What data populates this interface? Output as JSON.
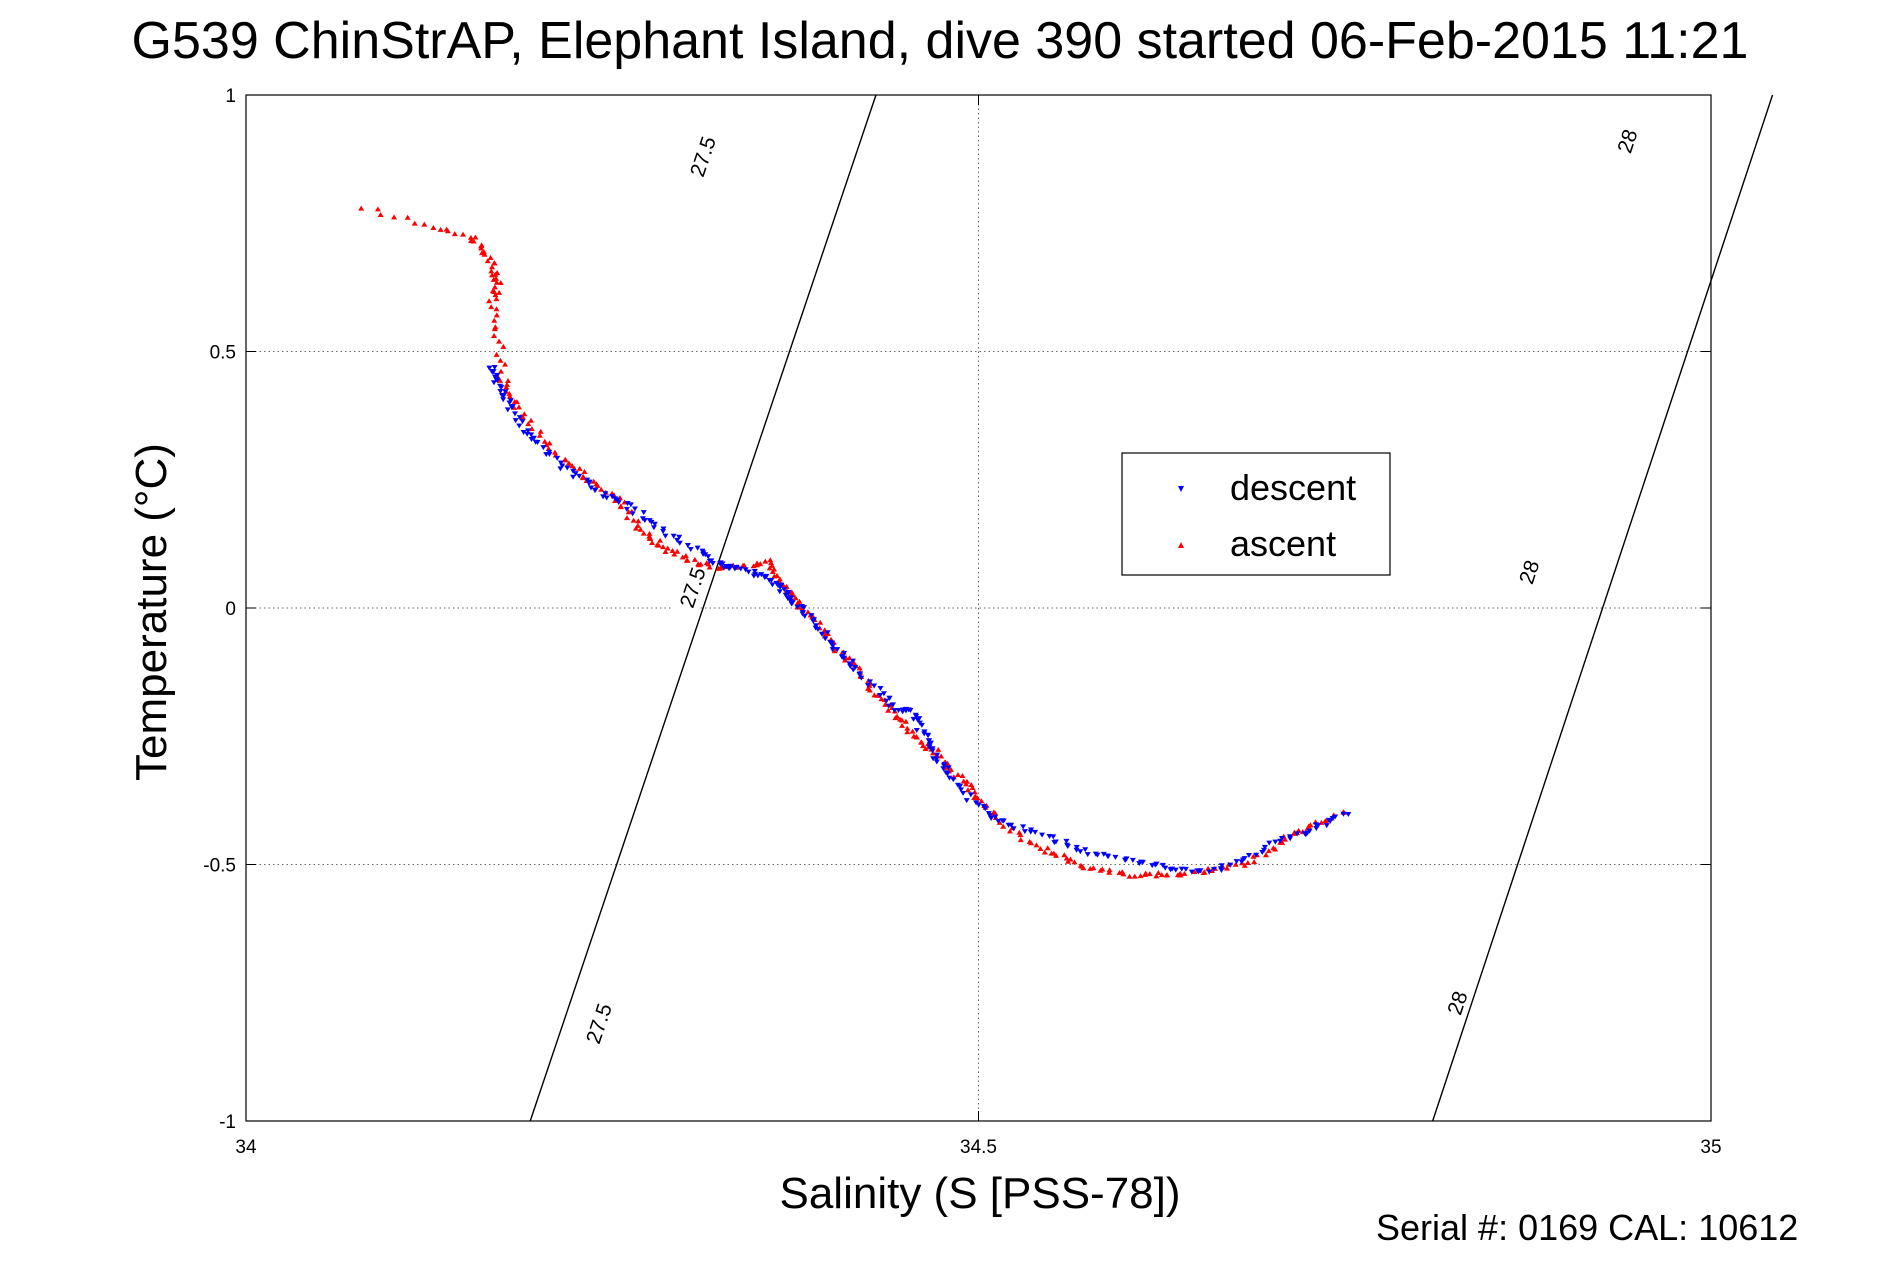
{
  "chart_data": {
    "type": "scatter",
    "title": "G539 ChinStrAP, Elephant Island, dive 390 started 06-Feb-2015 11:21",
    "xlabel": "Salinity (S [PSS-78])",
    "ylabel": "Temperature (°C)",
    "footer": "Serial #: 0169 CAL: 10612",
    "xlim": [
      34,
      35
    ],
    "ylim": [
      -1,
      1
    ],
    "x_ticks": [
      34,
      34.5,
      35
    ],
    "x_tick_labels": [
      "34",
      "34.5",
      "35"
    ],
    "y_ticks": [
      -1,
      -0.5,
      0,
      0.5,
      1
    ],
    "y_tick_labels": [
      "-1",
      "-0.5",
      "0",
      "0.5",
      "1"
    ],
    "grid": true,
    "legend_position": "upper-right",
    "colors": {
      "descent": "#0000ff",
      "ascent": "#ff0000",
      "isopycnal": "#000000"
    },
    "isopycnals": [
      {
        "label": "27.5",
        "x": [
          34.194,
          34.253,
          34.312,
          34.371,
          34.43
        ],
        "y": [
          -1,
          -0.5,
          0,
          0.5,
          1
        ],
        "label_positions": [
          {
            "x": 34.241,
            "y": -0.81
          },
          {
            "x": 34.305,
            "y": 0.04
          },
          {
            "x": 34.312,
            "y": 0.88
          }
        ]
      },
      {
        "label": "28",
        "x": [
          34.81,
          34.868,
          34.926,
          34.984,
          35.042
        ],
        "y": [
          -1,
          -0.5,
          0,
          0.5,
          1
        ],
        "label_positions": [
          {
            "x": 34.827,
            "y": -0.77
          },
          {
            "x": 34.876,
            "y": 0.07
          },
          {
            "x": 34.943,
            "y": 0.91
          }
        ]
      }
    ],
    "series": [
      {
        "name": "descent",
        "marker": "triangle-down",
        "path": [
          [
            34.168,
            0.47
          ],
          [
            34.17,
            0.45
          ],
          [
            34.175,
            0.42
          ],
          [
            34.18,
            0.39
          ],
          [
            34.19,
            0.35
          ],
          [
            34.2,
            0.32
          ],
          [
            34.215,
            0.28
          ],
          [
            34.23,
            0.25
          ],
          [
            34.245,
            0.22
          ],
          [
            34.26,
            0.2
          ],
          [
            34.275,
            0.17
          ],
          [
            34.29,
            0.14
          ],
          [
            34.31,
            0.11
          ],
          [
            34.32,
            0.09
          ],
          [
            34.33,
            0.08
          ],
          [
            34.345,
            0.07
          ],
          [
            34.355,
            0.06
          ],
          [
            34.365,
            0.04
          ],
          [
            34.37,
            0.02
          ],
          [
            34.38,
            0.0
          ],
          [
            34.39,
            -0.03
          ],
          [
            34.4,
            -0.07
          ],
          [
            34.41,
            -0.1
          ],
          [
            34.42,
            -0.13
          ],
          [
            34.435,
            -0.17
          ],
          [
            34.445,
            -0.2
          ],
          [
            34.455,
            -0.2
          ],
          [
            34.46,
            -0.23
          ],
          [
            34.465,
            -0.26
          ],
          [
            34.47,
            -0.29
          ],
          [
            34.48,
            -0.32
          ],
          [
            34.49,
            -0.36
          ],
          [
            34.505,
            -0.4
          ],
          [
            34.52,
            -0.42
          ],
          [
            34.54,
            -0.44
          ],
          [
            34.56,
            -0.46
          ],
          [
            34.58,
            -0.48
          ],
          [
            34.6,
            -0.49
          ],
          [
            34.62,
            -0.5
          ],
          [
            34.64,
            -0.51
          ],
          [
            34.66,
            -0.51
          ],
          [
            34.68,
            -0.49
          ],
          [
            34.7,
            -0.46
          ],
          [
            34.72,
            -0.44
          ],
          [
            34.735,
            -0.42
          ],
          [
            34.75,
            -0.4
          ]
        ]
      },
      {
        "name": "ascent",
        "marker": "triangle-up",
        "path": [
          [
            34.08,
            0.78
          ],
          [
            34.13,
            0.74
          ],
          [
            34.155,
            0.72
          ],
          [
            34.165,
            0.69
          ],
          [
            34.17,
            0.66
          ],
          [
            34.172,
            0.63
          ],
          [
            34.168,
            0.6
          ],
          [
            34.172,
            0.53
          ],
          [
            34.175,
            0.45
          ],
          [
            34.18,
            0.41
          ],
          [
            34.19,
            0.37
          ],
          [
            34.205,
            0.32
          ],
          [
            34.22,
            0.28
          ],
          [
            34.235,
            0.25
          ],
          [
            34.25,
            0.22
          ],
          [
            34.26,
            0.19
          ],
          [
            34.27,
            0.15
          ],
          [
            34.28,
            0.13
          ],
          [
            34.29,
            0.11
          ],
          [
            34.305,
            0.09
          ],
          [
            34.32,
            0.08
          ],
          [
            34.34,
            0.08
          ],
          [
            34.355,
            0.09
          ],
          [
            34.365,
            0.06
          ],
          [
            34.37,
            0.03
          ],
          [
            34.38,
            0.0
          ],
          [
            34.39,
            -0.03
          ],
          [
            34.4,
            -0.07
          ],
          [
            34.41,
            -0.1
          ],
          [
            34.42,
            -0.13
          ],
          [
            34.43,
            -0.17
          ],
          [
            34.44,
            -0.2
          ],
          [
            34.45,
            -0.23
          ],
          [
            34.46,
            -0.26
          ],
          [
            34.47,
            -0.28
          ],
          [
            34.48,
            -0.31
          ],
          [
            34.49,
            -0.34
          ],
          [
            34.5,
            -0.37
          ],
          [
            34.51,
            -0.4
          ],
          [
            34.525,
            -0.44
          ],
          [
            34.545,
            -0.47
          ],
          [
            34.56,
            -0.49
          ],
          [
            34.58,
            -0.51
          ],
          [
            34.6,
            -0.52
          ],
          [
            34.62,
            -0.52
          ],
          [
            34.64,
            -0.52
          ],
          [
            34.66,
            -0.51
          ],
          [
            34.68,
            -0.5
          ],
          [
            34.7,
            -0.47
          ],
          [
            34.715,
            -0.44
          ],
          [
            34.73,
            -0.42
          ],
          [
            34.75,
            -0.4
          ]
        ]
      }
    ]
  }
}
